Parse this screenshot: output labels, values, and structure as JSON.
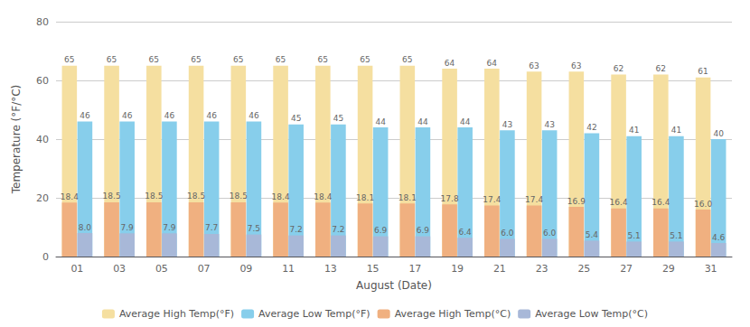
{
  "chart_data": {
    "type": "bar",
    "xlabel": "August (Date)",
    "ylabel": "Temperature (°F/°C)",
    "categories": [
      "01",
      "03",
      "05",
      "07",
      "09",
      "11",
      "13",
      "15",
      "17",
      "19",
      "21",
      "23",
      "25",
      "27",
      "29",
      "31"
    ],
    "series": [
      {
        "name": "Average High Temp(°F)",
        "color": "#f5dfa0",
        "values": [
          65,
          65,
          65,
          65,
          65,
          65,
          65,
          65,
          65,
          64,
          64,
          63,
          63,
          62,
          62,
          61
        ]
      },
      {
        "name": "Average Low Temp(°F)",
        "color": "#87ceeb",
        "values": [
          46,
          46,
          46,
          46,
          46,
          45,
          45,
          44,
          44,
          44,
          43,
          43,
          42,
          41,
          41,
          40
        ]
      },
      {
        "name": "Average High Temp(°C)",
        "color": "#f0b080",
        "values": [
          18.4,
          18.5,
          18.5,
          18.5,
          18.5,
          18.4,
          18.4,
          18.1,
          18.1,
          17.8,
          17.4,
          17.4,
          16.9,
          16.4,
          16.4,
          16.0
        ],
        "value_labels": [
          "18.4",
          "18.5",
          "18.5",
          "18.5",
          "18.5",
          "18.4",
          "18.4",
          "18.1",
          "18.1",
          "17.8",
          "17.4",
          "17.4",
          "16.9",
          "16.4",
          "16.4",
          "16.0"
        ]
      },
      {
        "name": "Average Low Temp(°C)",
        "color": "#a8b8d8",
        "values": [
          8.0,
          7.9,
          7.9,
          7.7,
          7.5,
          7.2,
          7.2,
          6.9,
          6.9,
          6.4,
          6.0,
          6.0,
          5.4,
          5.1,
          5.1,
          4.6
        ],
        "value_labels": [
          "8.0",
          "7.9",
          "7.9",
          "7.7",
          "7.5",
          "7.2",
          "7.2",
          "6.9",
          "6.9",
          "6.4",
          "6.0",
          "6.0",
          "5.4",
          "5.1",
          "5.1",
          "4.6"
        ]
      }
    ],
    "ylim": [
      0,
      80
    ],
    "yticks": [
      0,
      20,
      40,
      60,
      80
    ],
    "grid": true,
    "legend": "bottom",
    "data_labels": true
  }
}
